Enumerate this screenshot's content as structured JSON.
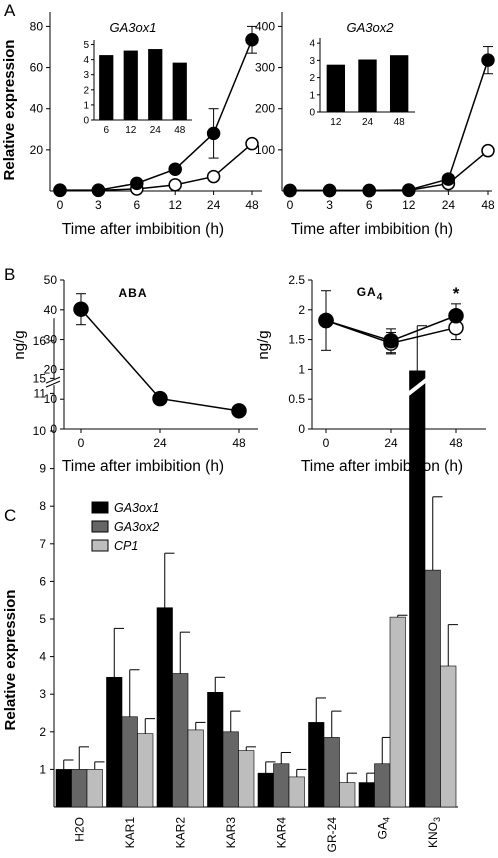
{
  "colors": {
    "ga3ox1": "#000000",
    "ga3ox2": "#666666",
    "cp1": "#bdbdbd",
    "open_marker": "#ffffff"
  },
  "panels": {
    "A": "A",
    "B": "B",
    "C": "C"
  },
  "chart_data": [
    {
      "id": "A-left",
      "type": "line",
      "title": "GA3ox1",
      "xlabel": "Time after imbibition (h)",
      "ylabel": "Relative expression",
      "x_ticks": [
        "0",
        "3",
        "6",
        "12",
        "24",
        "48"
      ],
      "y_ticks": [
        "20",
        "40",
        "60",
        "80"
      ],
      "ylim": [
        0,
        87
      ],
      "series": [
        {
          "marker": "filled",
          "values": [
            0.4,
            0.4,
            3.7,
            10.6,
            28.0,
            73.5
          ],
          "err": [
            0,
            0,
            0,
            1.5,
            12,
            6.5
          ]
        },
        {
          "marker": "open",
          "values": [
            0.3,
            0.3,
            1.0,
            3.0,
            7.0,
            23.0
          ],
          "err": [
            0,
            0,
            0,
            0,
            0,
            0
          ]
        }
      ],
      "inset": {
        "type": "bar",
        "categories": [
          "6",
          "12",
          "24",
          "48"
        ],
        "values": [
          4.3,
          4.6,
          4.7,
          3.8
        ],
        "y_ticks": [
          "0",
          "1",
          "2",
          "3",
          "4",
          "5"
        ],
        "ylim": [
          0,
          5.3
        ]
      }
    },
    {
      "id": "A-right",
      "type": "line",
      "title": "GA3ox2",
      "xlabel": "Time after imbibition (h)",
      "ylabel": "",
      "x_ticks": [
        "0",
        "3",
        "6",
        "12",
        "24",
        "48"
      ],
      "y_ticks": [
        "100",
        "200",
        "300",
        "400"
      ],
      "ylim": [
        0,
        435
      ],
      "series": [
        {
          "marker": "filled",
          "values": [
            1.5,
            1.5,
            1.5,
            2.5,
            29,
            318
          ],
          "err": [
            0,
            0,
            0,
            0,
            0,
            33
          ]
        },
        {
          "marker": "open",
          "values": [
            1.0,
            1.0,
            1.0,
            1.5,
            18,
            98
          ],
          "err": [
            0,
            0,
            0,
            0,
            0,
            0
          ]
        }
      ],
      "inset": {
        "type": "bar",
        "categories": [
          "12",
          "24",
          "48"
        ],
        "values": [
          2.75,
          3.05,
          3.3
        ],
        "y_ticks": [
          "0",
          "1",
          "2",
          "3",
          "4"
        ],
        "ylim": [
          0,
          4.3
        ]
      }
    },
    {
      "id": "B-left",
      "type": "line",
      "title": "ABA",
      "xlabel": "Time after imbibition (h)",
      "ylabel": "ng/g",
      "x_ticks": [
        "0",
        "24",
        "48"
      ],
      "y_ticks": [
        "0",
        "10",
        "20",
        "30",
        "40",
        "50"
      ],
      "ylim": [
        0,
        50
      ],
      "series": [
        {
          "marker": "filled",
          "values": [
            40.2,
            10.2,
            6.1
          ],
          "err": [
            5.2,
            0,
            0
          ]
        }
      ]
    },
    {
      "id": "B-right",
      "type": "line",
      "title_main": "GA",
      "title_sub": "4",
      "xlabel": "Time after imbibition (h)",
      "ylabel": "ng/g",
      "x_ticks": [
        "0",
        "24",
        "48"
      ],
      "y_ticks": [
        "0",
        "0.5",
        "1",
        "1.5",
        "2",
        "2.5"
      ],
      "ylim": [
        0,
        2.5
      ],
      "annotation": "*",
      "series": [
        {
          "marker": "filled",
          "values": [
            1.82,
            1.48,
            1.9
          ],
          "err": [
            0.5,
            0.2,
            0.2
          ]
        },
        {
          "marker": "open",
          "values": [
            1.82,
            1.44,
            1.7
          ],
          "err": [
            0,
            0.18,
            0.2
          ]
        }
      ]
    },
    {
      "id": "C",
      "type": "bar",
      "ylabel": "Relative expression",
      "categories": [
        "H2O",
        "KAR1",
        "KAR2",
        "KAR3",
        "KAR4",
        "GR-24",
        "GA4",
        "KNO3"
      ],
      "y_ticks": [
        "1",
        "2",
        "3",
        "4",
        "5",
        "6",
        "7",
        "8",
        "9",
        "10",
        "11",
        "15",
        "16"
      ],
      "ylim": [
        0,
        16.6
      ],
      "axis_break": [
        11.2,
        15
      ],
      "series": [
        {
          "name": "GA3ox1",
          "values": [
            1.0,
            3.45,
            5.3,
            3.05,
            0.9,
            2.25,
            0.65,
            15.2
          ],
          "err": [
            0.25,
            1.3,
            1.45,
            0.4,
            0.3,
            0.65,
            0.25,
            1.2
          ]
        },
        {
          "name": "GA3ox2",
          "values": [
            1.0,
            2.4,
            3.55,
            2.0,
            1.15,
            1.85,
            1.15,
            6.3
          ],
          "err": [
            0.6,
            1.25,
            1.1,
            0.55,
            0.3,
            0.7,
            0.7,
            1.95
          ]
        },
        {
          "name": "CP1",
          "values": [
            1.0,
            1.95,
            2.05,
            1.5,
            0.8,
            0.65,
            5.05,
            3.75
          ],
          "err": [
            0.2,
            0.4,
            0.2,
            0.1,
            0.2,
            0.25,
            0.05,
            1.1
          ]
        }
      ]
    }
  ]
}
